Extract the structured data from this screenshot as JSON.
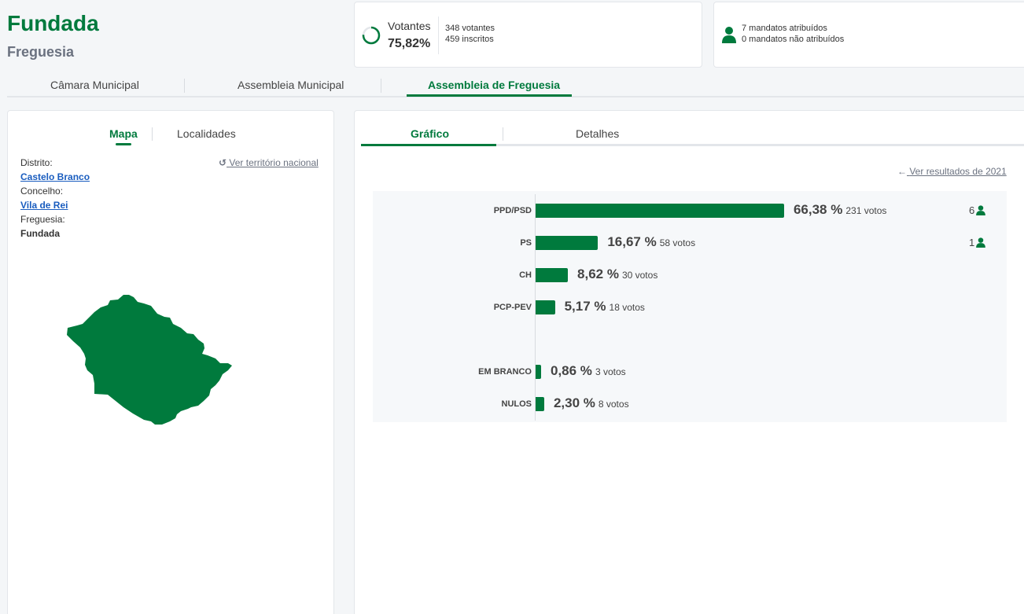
{
  "header": {
    "title": "Fundada",
    "subtitle": "Freguesia"
  },
  "summary": {
    "votantes_label": "Votantes",
    "votantes_pct": "75,82%",
    "votantes_fraction": 0.7582,
    "votantes_count": "348 votantes",
    "inscritos_count": "459 inscritos",
    "mandatos_atribuidos": "7 mandatos atribuídos",
    "mandatos_nao_atribuidos": "0 mandatos não atribuídos"
  },
  "tabs": [
    "Câmara Municipal",
    "Assembleia Municipal",
    "Assembleia de Freguesia"
  ],
  "left": {
    "tabs": {
      "mapa": "Mapa",
      "localidades": "Localidades"
    },
    "ver_territorio": "Ver território nacional",
    "distrito_label": "Distrito:",
    "distrito": "Castelo Branco",
    "concelho_label": "Concelho:",
    "concelho": "Vila de Rei",
    "freguesia_label": "Freguesia:",
    "freguesia": "Fundada"
  },
  "right": {
    "tabs": {
      "grafico": "Gráfico",
      "detalhes": "Detalhes"
    },
    "ver_2021": "Ver resultados de 2021"
  },
  "colors": {
    "accent": "#007a3d",
    "link": "#1a5dbf"
  },
  "chart_data": {
    "type": "bar",
    "orientation": "horizontal",
    "categories": [
      "PPD/PSD",
      "PS",
      "CH",
      "PCP-PEV",
      "EM BRANCO",
      "NULOS"
    ],
    "values": [
      66.38,
      16.67,
      8.62,
      5.17,
      0.86,
      2.3
    ],
    "pct_labels": [
      "66,38 %",
      "16,67 %",
      "8,62 %",
      "5,17 %",
      "0,86 %",
      "2,30 %"
    ],
    "votos_labels": [
      "231 votos",
      "58 votos",
      "30 votos",
      "18 votos",
      "3 votos",
      "8 votos"
    ],
    "seats": [
      6,
      1,
      null,
      null,
      null,
      null
    ],
    "seat_labels": [
      "6",
      "1",
      "",
      "",
      "",
      ""
    ],
    "xlim": [
      0,
      100
    ]
  }
}
